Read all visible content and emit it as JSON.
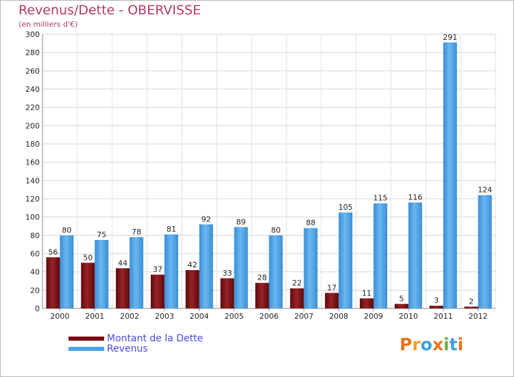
{
  "header": {
    "title": "Revenus/Dette - OBERVISSE",
    "subtitle": "(en milliers d'€)"
  },
  "legend": {
    "dette_label": "Montant de la Dette",
    "revenus_label": "Revenus"
  },
  "logo": {
    "text": "Proxiti"
  },
  "colors": {
    "dette": "#7a0f12",
    "revenus": "#4da3e6",
    "title": "#b03a6a",
    "legend_text": "#4a4ae0"
  },
  "chart_data": {
    "type": "bar",
    "title": "Revenus/Dette - OBERVISSE",
    "ylabel": "(en milliers d'€)",
    "xlabel": "",
    "ylim": [
      0,
      300
    ],
    "yticks": [
      0,
      20,
      40,
      60,
      80,
      100,
      120,
      140,
      160,
      180,
      200,
      220,
      240,
      260,
      280,
      300
    ],
    "categories": [
      "2000",
      "2001",
      "2002",
      "2003",
      "2004",
      "2005",
      "2006",
      "2007",
      "2008",
      "2009",
      "2010",
      "2011",
      "2012"
    ],
    "series": [
      {
        "name": "Montant de la Dette",
        "values": [
          56,
          50,
          44,
          37,
          42,
          33,
          28,
          22,
          17,
          11,
          5,
          3,
          2
        ]
      },
      {
        "name": "Revenus",
        "values": [
          80,
          75,
          78,
          81,
          92,
          89,
          80,
          88,
          105,
          115,
          116,
          291,
          124
        ]
      }
    ],
    "grid": true,
    "legend_position": "bottom-left"
  }
}
